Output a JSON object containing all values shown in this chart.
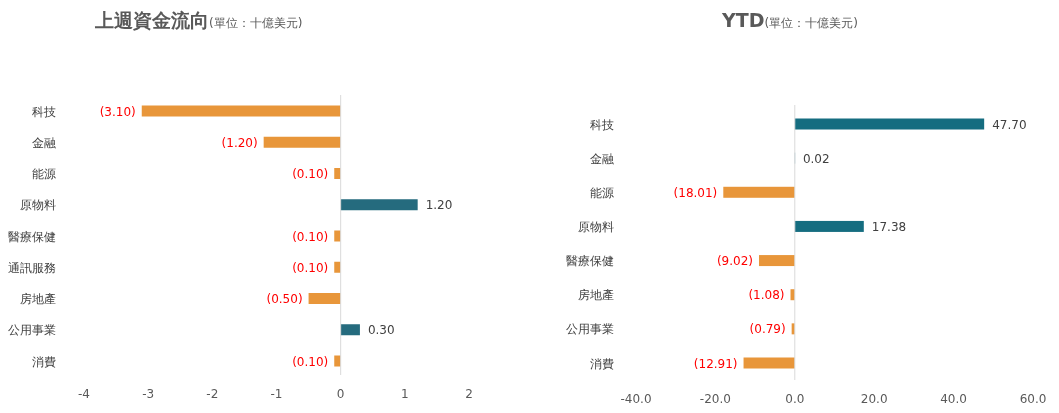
{
  "chart_data": [
    {
      "type": "bar",
      "orientation": "horizontal",
      "title": "上週資金流向",
      "subtitle": "(單位：十億美元)",
      "categories": [
        "科技",
        "金融",
        "能源",
        "原物料",
        "醫療保健",
        "通訊服務",
        "房地產",
        "公用事業",
        "消費"
      ],
      "values": [
        -3.1,
        -1.2,
        -0.1,
        1.2,
        -0.1,
        -0.1,
        -0.5,
        0.3,
        -0.1
      ],
      "colors": [
        "#e8963a",
        "#e8963a",
        "#e8963a",
        "#256b7e",
        "#e8963a",
        "#e8963a",
        "#e8963a",
        "#256b7e",
        "#e8963a"
      ],
      "value_labels": [
        "(3.10)",
        "(1.20)",
        "(0.10)",
        "1.20",
        "(0.10)",
        "(0.10)",
        "(0.50)",
        "0.30",
        "(0.10)"
      ],
      "xlim": [
        -4,
        2
      ],
      "xticks": [
        -4,
        -3,
        -2,
        -1,
        0,
        1,
        2
      ]
    },
    {
      "type": "bar",
      "orientation": "horizontal",
      "title": "YTD",
      "subtitle": "(單位：十億美元)",
      "categories": [
        "科技",
        "金融",
        "能源",
        "原物料",
        "醫療保健",
        "房地產",
        "公用事業",
        "消費"
      ],
      "values": [
        47.7,
        0.02,
        -18.01,
        17.38,
        -9.02,
        -1.08,
        -0.79,
        -12.91
      ],
      "colors": [
        "#156d80",
        "#156d80",
        "#e8963a",
        "#156d80",
        "#e8963a",
        "#e8963a",
        "#e8963a",
        "#e8963a"
      ],
      "value_labels": [
        "47.70",
        "0.02",
        "(18.01)",
        "17.38",
        "(9.02)",
        "(1.08)",
        "(0.79)",
        "(12.91)"
      ],
      "xlim": [
        -40,
        60
      ],
      "xticks": [
        {
          "value": -40,
          "label": "-40.0"
        },
        {
          "value": -20,
          "label": "-20.0"
        },
        {
          "value": 0,
          "label": "0.0"
        },
        {
          "value": 20,
          "label": "20.0"
        },
        {
          "value": 40,
          "label": "40.0"
        },
        {
          "value": 60,
          "label": "60.0"
        }
      ]
    }
  ]
}
